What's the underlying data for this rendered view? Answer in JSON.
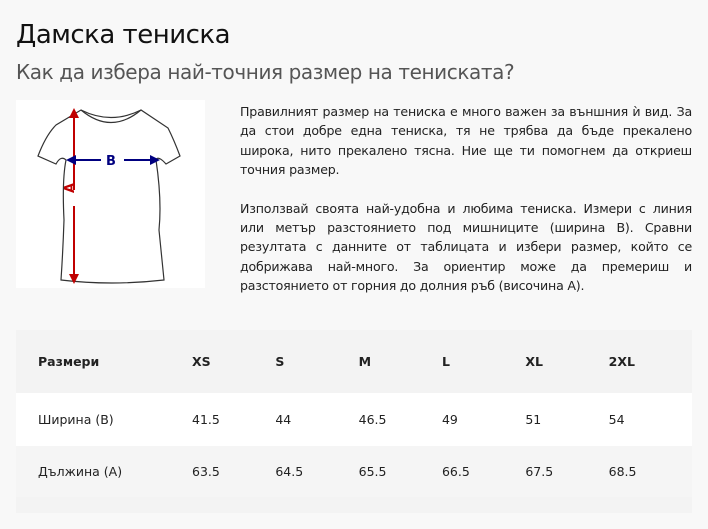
{
  "header": {
    "title": "Дамска тениска",
    "subtitle": "Как да избера най-точния размер на тениската?"
  },
  "diagram": {
    "width_label": "B",
    "length_label": "A",
    "colors": {
      "length_arrow": "#c00000",
      "width_arrow": "#000080"
    }
  },
  "description": {
    "paragraphs": [
      "Правилният размер на тениска е много важен за външния ѝ вид. За да стои добре една тениска, тя не трябва да бъде прекалено широка, нито прекалено тясна. Ние ще ти помогнем да откриеш точния размер.",
      "Използвай своята най-удобна и любима тениска. Измери с линия или метър разстоянието под мишниците (ширина B). Сравни резултата с данните от таблицата и избери размер, който се добрижава най-много. За ориентир може да премериш и разстоянието от горния до долния ръб (височина A)."
    ]
  },
  "table": {
    "headers": [
      "Размери",
      "XS",
      "S",
      "M",
      "L",
      "XL",
      "2XL"
    ],
    "rows": [
      [
        "Ширина (B)",
        "41.5",
        "44",
        "46.5",
        "49",
        "51",
        "54"
      ],
      [
        "Дължина (A)",
        "63.5",
        "64.5",
        "65.5",
        "66.5",
        "67.5",
        "68.5"
      ]
    ]
  }
}
